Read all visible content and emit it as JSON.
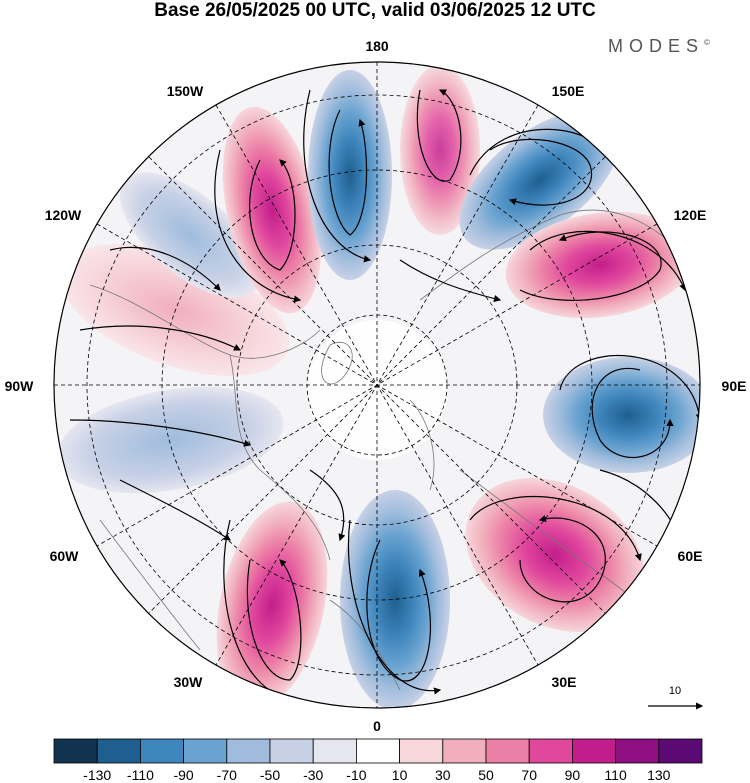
{
  "title": "Base 26/05/2025 00 UTC, valid 03/06/2025 12 UTC",
  "brand": {
    "name": "MODES",
    "mark": "©"
  },
  "longitude_labels": [
    {
      "id": "180",
      "text": "180"
    },
    {
      "id": "150e",
      "text": "150E"
    },
    {
      "id": "120e",
      "text": "120E"
    },
    {
      "id": "90e",
      "text": "90E"
    },
    {
      "id": "60e",
      "text": "60E"
    },
    {
      "id": "30e",
      "text": "30E"
    },
    {
      "id": "0",
      "text": "0"
    },
    {
      "id": "30w",
      "text": "30W"
    },
    {
      "id": "60w",
      "text": "60W"
    },
    {
      "id": "90w",
      "text": "90W"
    },
    {
      "id": "120w",
      "text": "120W"
    },
    {
      "id": "150w",
      "text": "150W"
    }
  ],
  "reference_vector": {
    "label": "10"
  },
  "colorbar": {
    "ticks": [
      "-130",
      "-110",
      "-90",
      "-70",
      "-50",
      "-30",
      "-10",
      "10",
      "30",
      "50",
      "70",
      "90",
      "110",
      "130"
    ],
    "colors": [
      "#10344f",
      "#1e5f8f",
      "#3f86bd",
      "#6aa3d0",
      "#9fbcdc",
      "#c7d1e6",
      "#e6e6f0",
      "#ffffff",
      "#f7d6dc",
      "#f1aebd",
      "#ec7fa6",
      "#e0479d",
      "#c21e8b",
      "#8f0f82",
      "#5c0a73"
    ]
  },
  "anomalies": [
    {
      "name": "anomaly-150e",
      "sign": "negative",
      "peak": -120
    },
    {
      "name": "anomaly-120e",
      "sign": "positive",
      "peak": 95
    },
    {
      "name": "anomaly-90e",
      "sign": "negative",
      "peak": -115
    },
    {
      "name": "anomaly-60e",
      "sign": "positive",
      "peak": 85
    },
    {
      "name": "anomaly-0",
      "sign": "negative",
      "peak": -110
    },
    {
      "name": "anomaly-30w",
      "sign": "positive",
      "peak": 105
    },
    {
      "name": "anomaly-150w",
      "sign": "positive",
      "peak": 110
    },
    {
      "name": "anomaly-170w",
      "sign": "negative",
      "peak": -110
    },
    {
      "name": "anomaly-170e",
      "sign": "positive",
      "peak": 80
    },
    {
      "name": "anomaly-120w",
      "sign": "negative",
      "peak": -45
    },
    {
      "name": "anomaly-100w",
      "sign": "positive",
      "peak": 40
    },
    {
      "name": "anomaly-75w",
      "sign": "negative",
      "peak": -45
    }
  ]
}
